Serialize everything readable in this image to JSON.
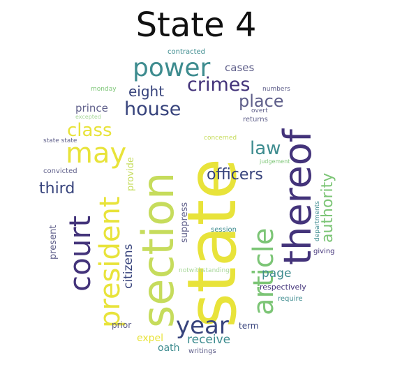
{
  "title": "State 4",
  "colors": {
    "yellow": "#e8e33a",
    "purple": "#43337a",
    "navy": "#37437c",
    "teal": "#3e8c8f",
    "green": "#7cc576",
    "lime": "#c6dc5c",
    "lightgreen": "#a8d79a",
    "gray": "#5f5f8a"
  },
  "words": {
    "state": "state",
    "section": "section",
    "thereof": "thereof",
    "court": "court",
    "may": "may",
    "president": "president",
    "article": "article",
    "year": "year",
    "power": "power",
    "house": "house",
    "crimes": "crimes",
    "place": "place",
    "class": "class",
    "law": "law",
    "officers": "officers",
    "third": "third",
    "authority": "authority",
    "eight": "eight",
    "cases": "cases",
    "prince": "prince",
    "citizens": "citizens",
    "provide": "provide",
    "suppress": "suppress",
    "page": "page",
    "receive": "receive",
    "oath": "oath",
    "expel": "expel",
    "present": "present",
    "prior": "prior",
    "term": "term",
    "writings": "writings",
    "session": "session",
    "departments": "departments",
    "giving": "giving",
    "respectively": "respectively",
    "require": "require",
    "notwithstanding": "notwithstanding",
    "state_state": "state state",
    "convicted": "convicted",
    "contracted": "contracted",
    "monday": "monday",
    "numbers": "numbers",
    "overt": "overt",
    "returns": "returns",
    "concerned": "concerned",
    "judgement": "judgement",
    "excepted": "excepted"
  }
}
